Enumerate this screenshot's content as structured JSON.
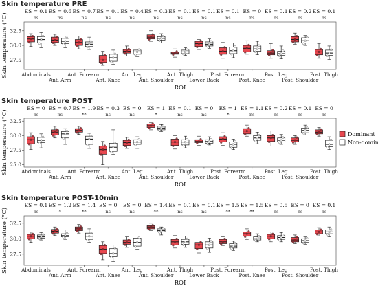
{
  "chart_data": [
    {
      "type": "box",
      "title": "Skin temperature PRE",
      "xlabel": "ROI",
      "ylabel": "Skin temperature (°C)",
      "ylim": [
        25.9,
        34.0
      ],
      "yticks": [
        27.5,
        30.0,
        32.5
      ],
      "categories": [
        "Abdominals",
        "Ant. Arm",
        "Ant. Forearm",
        "Ant. Knee",
        "Ant. Leg",
        "Ant. Shoulder",
        "Ant. Thigh",
        "Lower Back",
        "Post. Forearm",
        "Post. Knee",
        "Post. Leg",
        "Post. Shoulder",
        "Post. Thigh"
      ],
      "effect_sizes": [
        "ES = 0.1",
        "ES = 0.6",
        "ES = 0.7",
        "ES = 0.1",
        "ES = 0.4",
        "ES = 0.3",
        "ES = 0.1",
        "ES = 0.1",
        "ES = 0.1",
        "ES = 0",
        "ES = 0.1",
        "ES = 0.2",
        "ES = 0.1"
      ],
      "significance": [
        "ns",
        "ns",
        "ns",
        "ns",
        "ns",
        "ns",
        "ns",
        "ns",
        "ns",
        "ns",
        "ns",
        "ns",
        "ns"
      ],
      "series": [
        {
          "name": "Dominant",
          "boxes": [
            {
              "min": 29.8,
              "q1": 30.6,
              "median": 31.1,
              "q3": 31.5,
              "max": 32.0
            },
            {
              "min": 30.0,
              "q1": 30.5,
              "median": 30.9,
              "q3": 31.4,
              "max": 31.9
            },
            {
              "min": 29.4,
              "q1": 30.0,
              "median": 30.5,
              "q3": 31.0,
              "max": 31.6
            },
            {
              "min": 26.6,
              "q1": 27.1,
              "median": 27.5,
              "q3": 28.3,
              "max": 29.0
            },
            {
              "min": 28.2,
              "q1": 28.7,
              "median": 29.0,
              "q3": 29.3,
              "max": 29.9
            },
            {
              "min": 30.7,
              "q1": 31.1,
              "median": 31.4,
              "q3": 31.8,
              "max": 32.5
            },
            {
              "min": 28.0,
              "q1": 28.5,
              "median": 28.7,
              "q3": 28.9,
              "max": 29.4
            },
            {
              "min": 29.3,
              "q1": 29.8,
              "median": 30.3,
              "q3": 30.7,
              "max": 31.0
            },
            {
              "min": 27.8,
              "q1": 28.5,
              "median": 29.0,
              "q3": 29.6,
              "max": 30.5
            },
            {
              "min": 28.5,
              "q1": 28.9,
              "median": 29.5,
              "q3": 30.0,
              "max": 30.8
            },
            {
              "min": 27.8,
              "q1": 28.4,
              "median": 28.7,
              "q3": 29.1,
              "max": 30.3
            },
            {
              "min": 30.2,
              "q1": 30.6,
              "median": 31.0,
              "q3": 31.5,
              "max": 32.1
            },
            {
              "min": 27.8,
              "q1": 28.4,
              "median": 28.9,
              "q3": 29.3,
              "max": 30.3
            }
          ]
        },
        {
          "name": "Non-dominant",
          "boxes": [
            {
              "min": 29.6,
              "q1": 30.4,
              "median": 31.0,
              "q3": 31.5,
              "max": 32.2
            },
            {
              "min": 29.6,
              "q1": 30.3,
              "median": 30.7,
              "q3": 31.2,
              "max": 31.6
            },
            {
              "min": 29.3,
              "q1": 29.8,
              "median": 30.2,
              "q3": 30.6,
              "max": 31.4
            },
            {
              "min": 26.8,
              "q1": 27.3,
              "median": 27.9,
              "q3": 28.5,
              "max": 29.2
            },
            {
              "min": 28.1,
              "q1": 28.5,
              "median": 28.9,
              "q3": 29.2,
              "max": 29.7
            },
            {
              "min": 30.4,
              "q1": 30.9,
              "median": 31.2,
              "q3": 31.5,
              "max": 32.0
            },
            {
              "min": 28.3,
              "q1": 28.6,
              "median": 28.9,
              "q3": 29.2,
              "max": 29.6
            },
            {
              "min": 29.5,
              "q1": 29.9,
              "median": 30.2,
              "q3": 30.6,
              "max": 31.1
            },
            {
              "min": 27.9,
              "q1": 28.6,
              "median": 29.1,
              "q3": 29.7,
              "max": 30.4
            },
            {
              "min": 28.4,
              "q1": 29.0,
              "median": 29.4,
              "q3": 29.9,
              "max": 30.7
            },
            {
              "min": 27.7,
              "q1": 28.3,
              "median": 28.6,
              "q3": 29.0,
              "max": 29.9
            },
            {
              "min": 30.0,
              "q1": 30.4,
              "median": 30.8,
              "q3": 31.3,
              "max": 31.7
            },
            {
              "min": 27.6,
              "q1": 28.3,
              "median": 28.7,
              "q3": 29.2,
              "max": 29.9
            }
          ]
        }
      ]
    },
    {
      "type": "box",
      "title": "Skin temperature POST",
      "xlabel": "ROI",
      "ylabel": "Skin temperature (°C)",
      "ylim": [
        24.6,
        33.0
      ],
      "yticks": [
        25.0,
        27.5,
        30.0,
        32.5
      ],
      "categories": [
        "Abdominals",
        "Ant. Arm",
        "Ant. Forearm",
        "Ant. Knee",
        "Ant. Leg",
        "Ant. Shoulder",
        "Ant. Thigh",
        "Lower Back",
        "Post. Forearm",
        "Post. Knee",
        "Post. Leg",
        "Post. Shoulder",
        "Post. Thigh"
      ],
      "effect_sizes": [
        "ES = 0",
        "ES = 0.7",
        "ES = 1.9",
        "ES = 0.3",
        "ES = 0",
        "ES = 1",
        "ES = 0.1",
        "ES = 0",
        "ES = 1",
        "ES = 1.1",
        "ES = 0.2",
        "ES = 0.1",
        "ES = 0"
      ],
      "significance": [
        "ns",
        "ns",
        "**",
        "ns",
        "ns",
        "*",
        "ns",
        "ns",
        "*",
        "ns",
        "ns",
        "ns",
        "ns"
      ],
      "series": [
        {
          "name": "Dominant",
          "boxes": [
            {
              "min": 27.6,
              "q1": 28.6,
              "median": 29.3,
              "q3": 29.8,
              "max": 30.5
            },
            {
              "min": 29.6,
              "q1": 30.1,
              "median": 30.6,
              "q3": 31.0,
              "max": 31.6
            },
            {
              "min": 30.2,
              "q1": 30.6,
              "median": 30.9,
              "q3": 31.2,
              "max": 31.6
            },
            {
              "min": 25.0,
              "q1": 26.8,
              "median": 27.6,
              "q3": 28.2,
              "max": 29.0
            },
            {
              "min": 27.8,
              "q1": 28.3,
              "median": 28.8,
              "q3": 29.2,
              "max": 29.7
            },
            {
              "min": 31.0,
              "q1": 31.4,
              "median": 31.7,
              "q3": 32.0,
              "max": 32.2
            },
            {
              "min": 27.7,
              "q1": 28.3,
              "median": 28.9,
              "q3": 29.4,
              "max": 30.0
            },
            {
              "min": 28.3,
              "q1": 28.8,
              "median": 29.0,
              "q3": 29.3,
              "max": 29.9
            },
            {
              "min": 28.3,
              "q1": 28.9,
              "median": 29.4,
              "q3": 29.8,
              "max": 30.5
            },
            {
              "min": 29.9,
              "q1": 30.3,
              "median": 30.8,
              "q3": 31.2,
              "max": 31.8
            },
            {
              "min": 28.2,
              "q1": 29.0,
              "median": 29.6,
              "q3": 30.0,
              "max": 30.8
            },
            {
              "min": 28.5,
              "q1": 28.9,
              "median": 29.2,
              "q3": 29.6,
              "max": 30.0
            },
            {
              "min": 29.9,
              "q1": 30.3,
              "median": 30.6,
              "q3": 31.0,
              "max": 31.4
            }
          ]
        },
        {
          "name": "Non-dominant",
          "boxes": [
            {
              "min": 27.9,
              "q1": 28.8,
              "median": 29.2,
              "q3": 29.7,
              "max": 30.3
            },
            {
              "min": 28.5,
              "q1": 29.6,
              "median": 30.3,
              "q3": 30.7,
              "max": 31.2
            },
            {
              "min": 27.8,
              "q1": 28.5,
              "median": 29.4,
              "q3": 29.9,
              "max": 30.4
            },
            {
              "min": 26.8,
              "q1": 27.3,
              "median": 28.0,
              "q3": 28.7,
              "max": 31.0
            },
            {
              "min": 27.8,
              "q1": 28.5,
              "median": 28.9,
              "q3": 29.3,
              "max": 29.8
            },
            {
              "min": 30.7,
              "q1": 31.0,
              "median": 31.3,
              "q3": 31.6,
              "max": 31.9
            },
            {
              "min": 27.9,
              "q1": 28.4,
              "median": 28.9,
              "q3": 29.3,
              "max": 29.9
            },
            {
              "min": 28.4,
              "q1": 28.7,
              "median": 29.0,
              "q3": 29.3,
              "max": 29.8
            },
            {
              "min": 27.6,
              "q1": 28.0,
              "median": 28.5,
              "q3": 28.9,
              "max": 29.4
            },
            {
              "min": 28.6,
              "q1": 29.2,
              "median": 29.6,
              "q3": 30.0,
              "max": 30.6
            },
            {
              "min": 28.5,
              "q1": 28.9,
              "median": 29.2,
              "q3": 29.6,
              "max": 30.2
            },
            {
              "min": 30.1,
              "q1": 30.5,
              "median": 30.9,
              "q3": 31.3,
              "max": 31.8
            },
            {
              "min": 27.6,
              "q1": 28.1,
              "median": 28.5,
              "q3": 29.2,
              "max": 29.8
            }
          ]
        }
      ]
    },
    {
      "type": "box",
      "title": "Skin temperature POST-10min",
      "xlabel": "ROI",
      "ylabel": "Skin temperature (°C)",
      "ylim": [
        25.7,
        33.7
      ],
      "yticks": [
        27.5,
        30.0,
        32.5
      ],
      "categories": [
        "Abdominals",
        "Ant. Arm",
        "Ant. Forearm",
        "Ant. Knee",
        "Ant. Leg",
        "Ant. Shoulder",
        "Ant. Thigh",
        "Lower Back",
        "Post. Forearm",
        "Post. Knee",
        "Post. Leg",
        "Post. Shoulder",
        "Post. Thigh"
      ],
      "effect_sizes": [
        "ES = 0.1",
        "ES = 1.2",
        "ES = 1.4",
        "ES = 0",
        "ES = 0",
        "ES = 1.4",
        "ES = 0.1",
        "ES = 0.1",
        "ES = 1.5",
        "ES = 1.5",
        "ES = 0.5",
        "ES = 0",
        "ES = 0.1"
      ],
      "significance": [
        "ns",
        "*",
        "**",
        "ns",
        "ns",
        "**",
        "ns",
        "ns",
        "**",
        "**",
        "ns",
        "ns",
        "ns"
      ],
      "series": [
        {
          "name": "Dominant",
          "boxes": [
            {
              "min": 29.4,
              "q1": 30.0,
              "median": 30.4,
              "q3": 30.7,
              "max": 31.1
            },
            {
              "min": 30.5,
              "q1": 30.9,
              "median": 31.2,
              "q3": 31.5,
              "max": 31.9
            },
            {
              "min": 30.9,
              "q1": 31.3,
              "median": 31.6,
              "q3": 31.9,
              "max": 32.3
            },
            {
              "min": 26.6,
              "q1": 27.6,
              "median": 28.3,
              "q3": 28.9,
              "max": 29.5
            },
            {
              "min": 28.6,
              "q1": 29.1,
              "median": 29.4,
              "q3": 29.8,
              "max": 30.3
            },
            {
              "min": 31.3,
              "q1": 31.6,
              "median": 31.9,
              "q3": 32.1,
              "max": 32.5
            },
            {
              "min": 28.5,
              "q1": 29.0,
              "median": 29.5,
              "q3": 29.9,
              "max": 30.5
            },
            {
              "min": 27.7,
              "q1": 28.4,
              "median": 29.0,
              "q3": 29.4,
              "max": 30.0
            },
            {
              "min": 28.9,
              "q1": 29.2,
              "median": 29.5,
              "q3": 29.9,
              "max": 30.3
            },
            {
              "min": 29.9,
              "q1": 30.4,
              "median": 30.8,
              "q3": 31.1,
              "max": 31.6
            },
            {
              "min": 29.5,
              "q1": 30.0,
              "median": 30.4,
              "q3": 30.7,
              "max": 31.1
            },
            {
              "min": 29.2,
              "q1": 29.5,
              "median": 29.8,
              "q3": 30.2,
              "max": 30.6
            },
            {
              "min": 30.4,
              "q1": 30.8,
              "median": 31.1,
              "q3": 31.4,
              "max": 31.8
            }
          ]
        },
        {
          "name": "Non-dominant",
          "boxes": [
            {
              "min": 29.8,
              "q1": 30.1,
              "median": 30.3,
              "q3": 30.6,
              "max": 31.0
            },
            {
              "min": 29.9,
              "q1": 30.3,
              "median": 30.5,
              "q3": 30.8,
              "max": 31.4
            },
            {
              "min": 29.4,
              "q1": 29.9,
              "median": 30.4,
              "q3": 30.9,
              "max": 31.6
            },
            {
              "min": 26.3,
              "q1": 27.1,
              "median": 27.6,
              "q3": 28.4,
              "max": 29.0
            },
            {
              "min": 28.3,
              "q1": 28.8,
              "median": 29.4,
              "q3": 30.1,
              "max": 31.1
            },
            {
              "min": 30.6,
              "q1": 31.1,
              "median": 31.3,
              "q3": 31.6,
              "max": 31.9
            },
            {
              "min": 28.6,
              "q1": 29.1,
              "median": 29.5,
              "q3": 29.9,
              "max": 30.4
            },
            {
              "min": 27.8,
              "q1": 28.5,
              "median": 29.0,
              "q3": 29.5,
              "max": 30.1
            },
            {
              "min": 28.1,
              "q1": 28.5,
              "median": 28.8,
              "q3": 29.2,
              "max": 29.6
            },
            {
              "min": 29.5,
              "q1": 29.8,
              "median": 30.0,
              "q3": 30.3,
              "max": 30.8
            },
            {
              "min": 29.5,
              "q1": 29.9,
              "median": 30.2,
              "q3": 30.5,
              "max": 31.0
            },
            {
              "min": 29.1,
              "q1": 29.4,
              "median": 29.7,
              "q3": 30.0,
              "max": 30.3
            },
            {
              "min": 30.3,
              "q1": 30.8,
              "median": 31.1,
              "q3": 31.4,
              "max": 31.9
            }
          ]
        }
      ]
    }
  ],
  "legend": [
    {
      "label": "Dominant",
      "color": "#e8474f"
    },
    {
      "label": "Non-dominant",
      "color": "#ffffff"
    }
  ],
  "colors": {
    "dominant": "#e8474f",
    "non_dominant": "#ffffff",
    "stroke": "#222222",
    "panel_bg": "#ffffff"
  }
}
